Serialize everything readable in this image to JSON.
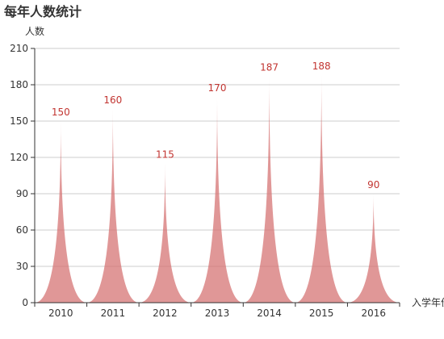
{
  "chart_data": {
    "type": "bar",
    "title": "每年人数统计",
    "ylabel": "人数",
    "xlabel": "入学年份",
    "categories": [
      "2010",
      "2011",
      "2012",
      "2013",
      "2014",
      "2015",
      "2016"
    ],
    "values": [
      150,
      160,
      115,
      170,
      187,
      188,
      90
    ],
    "ylim": [
      0,
      210
    ],
    "yticks": [
      0,
      30,
      60,
      90,
      120,
      150,
      180,
      210
    ],
    "grid": true,
    "legend": "none",
    "colors": {
      "fill": "#d67474",
      "label": "#c23531",
      "axis": "#333333",
      "grid": "#cccccc"
    }
  }
}
